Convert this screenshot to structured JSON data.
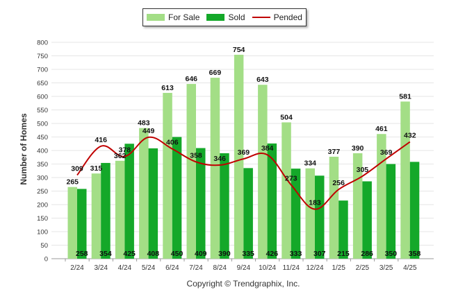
{
  "chart_data": {
    "type": "bar",
    "title": "",
    "ylabel": "Number of Homes",
    "xlabel": "",
    "ylim": [
      0,
      800
    ],
    "yticks": [
      0,
      50,
      100,
      150,
      200,
      250,
      300,
      350,
      400,
      450,
      500,
      550,
      600,
      650,
      700,
      750,
      800
    ],
    "grid": true,
    "legend_position": "top-center",
    "categories": [
      "2/24",
      "3/24",
      "4/24",
      "5/24",
      "6/24",
      "7/24",
      "8/24",
      "9/24",
      "10/24",
      "11/24",
      "12/24",
      "1/25",
      "2/25",
      "3/25",
      "4/25"
    ],
    "series": [
      {
        "name": "For Sale",
        "type": "bar",
        "color": "#a3de86",
        "values": [
          265,
          315,
          362,
          483,
          613,
          646,
          669,
          754,
          643,
          504,
          334,
          377,
          390,
          461,
          581
        ]
      },
      {
        "name": "Sold",
        "type": "bar",
        "color": "#14a829",
        "values": [
          258,
          354,
          425,
          408,
          450,
          409,
          390,
          335,
          426,
          333,
          307,
          215,
          286,
          350,
          358
        ]
      },
      {
        "name": "Pended",
        "type": "line",
        "color": "#c00000",
        "values": [
          309,
          416,
          378,
          449,
          406,
          358,
          346,
          369,
          384,
          273,
          183,
          256,
          305,
          369,
          432
        ]
      }
    ]
  },
  "footer": {
    "copyright": "Copyright © Trendgraphix, Inc."
  }
}
